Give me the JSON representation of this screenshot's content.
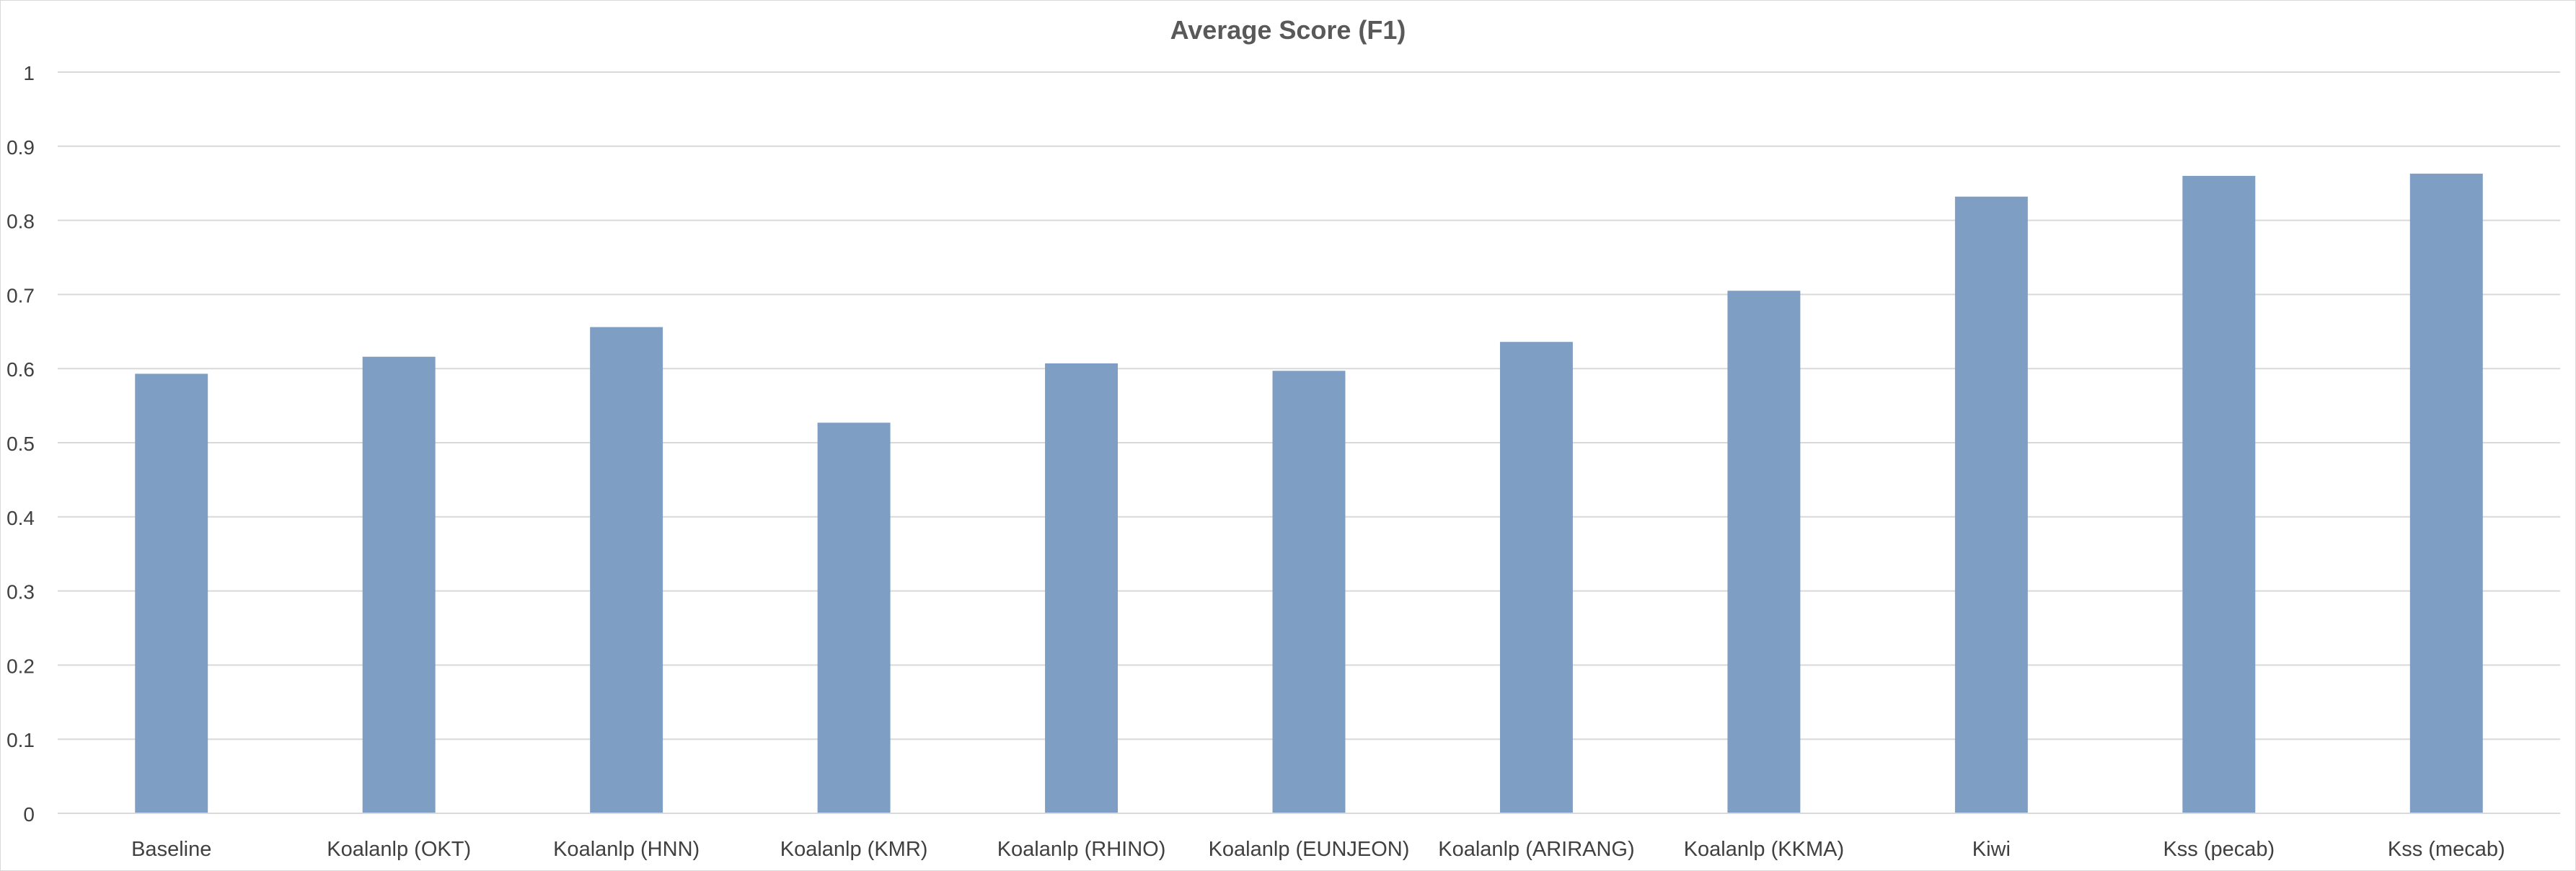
{
  "chart_data": {
    "type": "bar",
    "title": "Average Score (F1)",
    "xlabel": "",
    "ylabel": "",
    "categories": [
      "Baseline",
      "Koalanlp (OKT)",
      "Koalanlp (HNN)",
      "Koalanlp (KMR)",
      "Koalanlp (RHINO)",
      "Koalanlp (EUNJEON)",
      "Koalanlp (ARIRANG)",
      "Koalanlp (KKMA)",
      "Kiwi",
      "Kss (pecab)",
      "Kss (mecab)"
    ],
    "values": [
      0.593,
      0.616,
      0.656,
      0.527,
      0.607,
      0.597,
      0.636,
      0.705,
      0.832,
      0.86,
      0.863
    ],
    "ylim": [
      0,
      1
    ],
    "yticks": [
      "0",
      "0.1",
      "0.2",
      "0.3",
      "0.4",
      "0.5",
      "0.6",
      "0.7",
      "0.8",
      "0.9",
      "1"
    ],
    "grid": true,
    "legend": "none",
    "bar_color": "#7f9ec3",
    "gridline_color": "#d9d9d9"
  }
}
